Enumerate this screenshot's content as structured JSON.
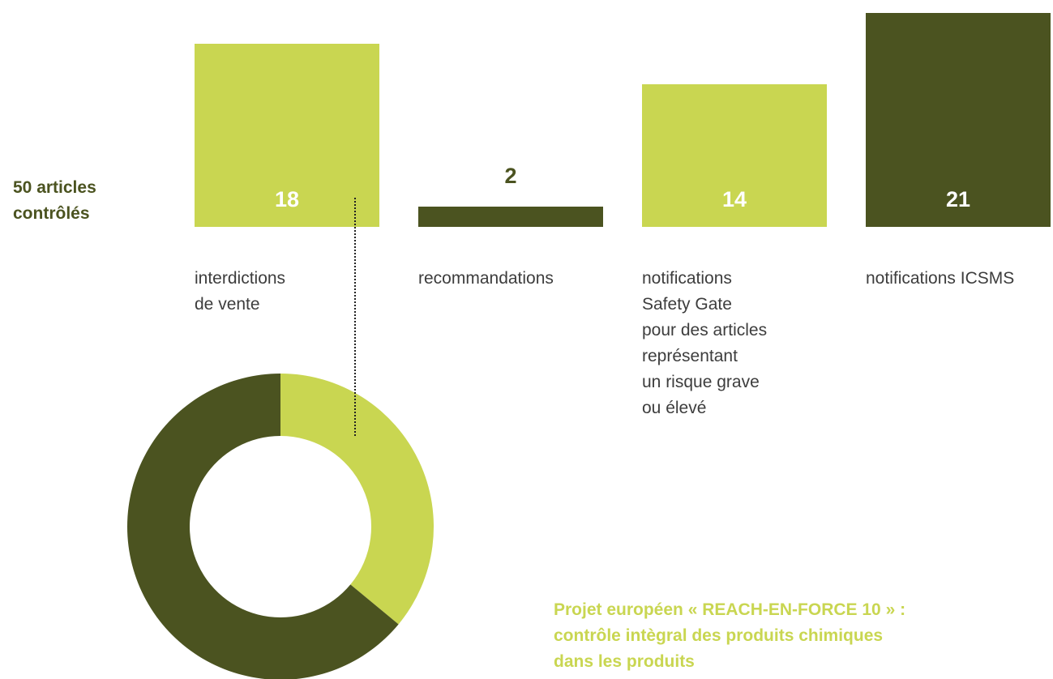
{
  "total_label": "50 articles contrôlés",
  "subtitle": "Projet européen « REACH-EN-FORCE 10 » :\ncontrôle intègral des produits chimiques\ndans les produits",
  "colors": {
    "light": "#c9d651",
    "dark": "#4b5320",
    "value_light": "#ffffff",
    "value_dark_on_white": "#4b5320"
  },
  "chart_data": [
    {
      "type": "bar",
      "categories": [
        "interdictions\nde vente",
        "recommandations",
        "notifications\nSafety Gate\npour des articles\nreprésentant\nun risque grave\nou élevé",
        "notifications ICSMS"
      ],
      "values": [
        18,
        2,
        14,
        21
      ],
      "value_labels": [
        "18",
        "2",
        "14",
        "21"
      ],
      "bar_colors": [
        "light",
        "dark",
        "light",
        "dark"
      ],
      "ylim": [
        0,
        21
      ]
    },
    {
      "type": "pie",
      "donut": true,
      "values": [
        18,
        32
      ],
      "total": 50,
      "slice_colors": [
        "light",
        "dark"
      ]
    }
  ]
}
